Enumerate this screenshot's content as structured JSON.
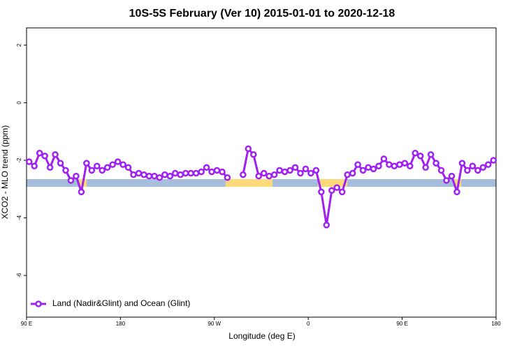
{
  "chart_data": {
    "type": "line",
    "title": "10S-5S February (Ver 10)   2015-01-01 to 2020-12-18",
    "x_label": "Longitude (deg E)",
    "y_label": "XCO2 - MLO trend (ppm)",
    "xlim": [
      90,
      540
    ],
    "xticks": [
      {
        "value": 90,
        "label": "90 E"
      },
      180,
      {
        "value": 270,
        "label": "90 W"
      },
      {
        "value": 360,
        "label": "0"
      },
      {
        "value": 450,
        "label": "90 E"
      },
      {
        "value": 540,
        "label": "180"
      }
    ],
    "ylim": [
      -7.45,
      2.6
    ],
    "yticks": [
      2,
      0,
      -2,
      -4,
      -6
    ],
    "legend": "bottom-left",
    "x": [
      92.5,
      97.5,
      102.5,
      107.5,
      112.5,
      117.5,
      122.5,
      127.5,
      132.5,
      137.5,
      142.5,
      147.5,
      152.5,
      157.5,
      162.5,
      167.5,
      172.5,
      177.5,
      182.5,
      187.5,
      192.5,
      197.5,
      202.5,
      207.5,
      212.5,
      217.5,
      222.5,
      227.5,
      232.5,
      237.5,
      242.5,
      247.5,
      252.5,
      257.5,
      262.5,
      267.5,
      272.5,
      277.5,
      282.5,
      287.5,
      292.5,
      297.5,
      302.5,
      307.5,
      312.5,
      317.5,
      322.5,
      327.5,
      332.5,
      337.5,
      342.5,
      347.5,
      352.5,
      357.5,
      362.5,
      367.5,
      372.5,
      377.5,
      382.5,
      387.5,
      392.5,
      397.5,
      402.5,
      407.5,
      412.5,
      417.5,
      422.5,
      427.5,
      432.5,
      437.5,
      442.5,
      447.5,
      452.5,
      457.5,
      462.5,
      467.5,
      472.5,
      477.5,
      482.5,
      487.5,
      492.5,
      497.5,
      502.5,
      507.5,
      512.5,
      517.5,
      522.5,
      527.5,
      532.5,
      537.5
    ],
    "series": [
      {
        "name": "Land (Nadir&Glint) and Ocean (Glint)",
        "color": "#a020f0",
        "values": [
          -2.05,
          -2.2,
          -1.75,
          -1.85,
          -2.25,
          -1.8,
          -2.1,
          -2.35,
          -2.7,
          -2.55,
          -3.1,
          -2.1,
          -2.35,
          -2.2,
          -2.35,
          -2.25,
          -2.15,
          -2.05,
          -2.15,
          -2.25,
          -2.5,
          -2.45,
          -2.5,
          -2.55,
          -2.55,
          -2.6,
          -2.5,
          -2.55,
          -2.45,
          -2.5,
          -2.45,
          -2.45,
          -2.45,
          -2.4,
          -2.25,
          -2.4,
          -2.35,
          -2.4,
          -2.6,
          null,
          null,
          -2.5,
          -1.6,
          -1.8,
          -2.55,
          -2.45,
          -2.55,
          -2.5,
          -2.35,
          -2.4,
          -2.35,
          -2.25,
          -2.45,
          -2.3,
          -2.45,
          -2.35,
          -3.1,
          -4.25,
          -3.05,
          -2.95,
          -3.1,
          -2.5,
          -2.45,
          -2.15,
          -2.35,
          -2.25,
          -2.3,
          -2.2,
          -1.95,
          -2.15,
          -2.2,
          -2.15,
          -2.1,
          -2.2,
          -1.75,
          -1.85,
          -2.25,
          -1.8,
          -2.1,
          -2.35,
          -2.7,
          -2.55,
          -3.1,
          -2.1,
          -2.35,
          -2.2,
          -2.35,
          -2.25,
          -2.15,
          -2.0
        ]
      }
    ]
  }
}
